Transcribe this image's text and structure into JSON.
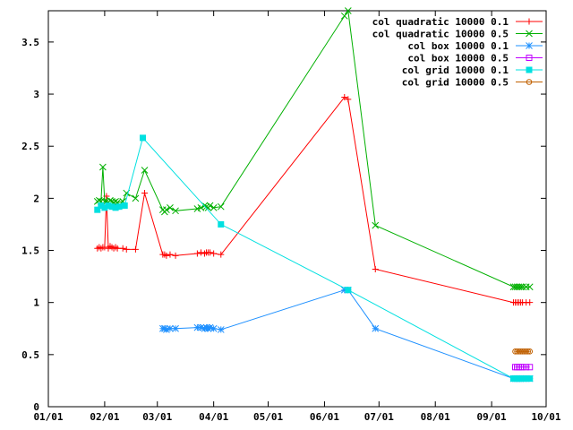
{
  "chart_data": {
    "type": "line",
    "x_type": "date",
    "year": 2000,
    "xlim": [
      "01/01",
      "10/01"
    ],
    "ylim": [
      0,
      3.8
    ],
    "x_ticks": [
      "01/01",
      "02/01",
      "03/01",
      "04/01",
      "05/01",
      "06/01",
      "07/01",
      "08/01",
      "09/01",
      "10/01"
    ],
    "y_ticks": [
      "0",
      "0.5",
      "1",
      "1.5",
      "2",
      "2.5",
      "3",
      "3.5"
    ],
    "grid": false,
    "legend_position": "top-right",
    "series": [
      {
        "name": "col quadratic 10000 0.1",
        "color": "#ff0000",
        "marker": "plus",
        "x": [
          "01/28",
          "01/29",
          "01/30",
          "01/31",
          "02/01",
          "02/02",
          "02/03",
          "02/04",
          "02/05",
          "02/06",
          "02/07",
          "02/08",
          "02/11",
          "02/13",
          "02/18",
          "02/23",
          "03/04",
          "03/05",
          "03/06",
          "03/08",
          "03/11",
          "03/23",
          "03/25",
          "03/27",
          "03/28",
          "03/29",
          "03/30",
          "04/01",
          "04/05",
          "06/12",
          "06/14",
          "06/29",
          "09/13",
          "09/14",
          "09/15",
          "09/16",
          "09/17",
          "09/18",
          "09/20",
          "09/22"
        ],
        "y": [
          1.52,
          1.53,
          1.52,
          1.53,
          1.53,
          2.02,
          1.52,
          1.54,
          1.53,
          1.52,
          1.53,
          1.52,
          1.52,
          1.51,
          1.51,
          2.05,
          1.46,
          1.46,
          1.45,
          1.46,
          1.45,
          1.47,
          1.48,
          1.47,
          1.48,
          1.48,
          1.48,
          1.47,
          1.46,
          2.97,
          2.95,
          1.32,
          1.0,
          1.0,
          1.0,
          1.0,
          1.0,
          1.0,
          1.0,
          1.0
        ]
      },
      {
        "name": "col quadratic 10000 0.5",
        "color": "#00b000",
        "marker": "cross",
        "x": [
          "01/28",
          "01/29",
          "01/30",
          "01/31",
          "02/01",
          "02/02",
          "02/03",
          "02/04",
          "02/05",
          "02/06",
          "02/07",
          "02/08",
          "02/11",
          "02/13",
          "02/18",
          "02/23",
          "03/04",
          "03/05",
          "03/06",
          "03/08",
          "03/11",
          "03/23",
          "03/25",
          "03/27",
          "03/28",
          "03/29",
          "03/30",
          "04/01",
          "04/05",
          "06/12",
          "06/14",
          "06/29",
          "09/13",
          "09/14",
          "09/15",
          "09/16",
          "09/17",
          "09/18",
          "09/20",
          "09/22"
        ],
        "y": [
          1.97,
          1.98,
          1.97,
          2.3,
          1.97,
          1.97,
          1.96,
          1.98,
          1.97,
          1.96,
          1.97,
          1.96,
          1.97,
          2.05,
          2.0,
          2.27,
          1.89,
          1.87,
          1.89,
          1.91,
          1.88,
          1.9,
          1.91,
          1.93,
          1.92,
          1.91,
          1.93,
          1.91,
          1.92,
          3.75,
          3.8,
          1.74,
          1.15,
          1.15,
          1.15,
          1.15,
          1.15,
          1.15,
          1.15,
          1.15
        ]
      },
      {
        "name": "col box 10000 0.1",
        "color": "#1e90ff",
        "marker": "star",
        "x": [
          "03/04",
          "03/05",
          "03/06",
          "03/08",
          "03/11",
          "03/23",
          "03/25",
          "03/27",
          "03/28",
          "03/29",
          "03/30",
          "04/01",
          "04/05",
          "06/12",
          "06/14",
          "06/29",
          "09/13",
          "09/14",
          "09/15",
          "09/16",
          "09/17",
          "09/18",
          "09/20",
          "09/22"
        ],
        "y": [
          0.75,
          0.75,
          0.74,
          0.75,
          0.75,
          0.76,
          0.76,
          0.75,
          0.76,
          0.75,
          0.76,
          0.75,
          0.74,
          1.12,
          1.12,
          0.75,
          0.27,
          0.27,
          0.27,
          0.27,
          0.27,
          0.27,
          0.27,
          0.27
        ]
      },
      {
        "name": "col box 10000 0.5",
        "color": "#c000ff",
        "marker": "square-open",
        "x": [
          "09/14",
          "09/15",
          "09/16",
          "09/17",
          "09/18",
          "09/20",
          "09/22"
        ],
        "y": [
          0.38,
          0.38,
          0.38,
          0.38,
          0.38,
          0.38,
          0.38
        ]
      },
      {
        "name": "col grid 10000 0.1",
        "color": "#00e0e0",
        "marker": "square-filled",
        "x": [
          "01/28",
          "01/30",
          "02/01",
          "02/03",
          "02/05",
          "02/07",
          "02/09",
          "02/12",
          "02/22",
          "04/05",
          "06/14",
          "09/13",
          "09/14",
          "09/15",
          "09/16",
          "09/17",
          "09/18",
          "09/20",
          "09/22"
        ],
        "y": [
          1.89,
          1.93,
          1.91,
          1.93,
          1.92,
          1.91,
          1.92,
          1.93,
          2.58,
          1.75,
          1.12,
          0.27,
          0.27,
          0.27,
          0.27,
          0.27,
          0.27,
          0.27,
          0.27
        ]
      },
      {
        "name": "col grid 10000 0.5",
        "color": "#c06000",
        "marker": "circle-open",
        "x": [
          "09/14",
          "09/15",
          "09/16",
          "09/17",
          "09/18",
          "09/19",
          "09/20",
          "09/21",
          "09/22"
        ],
        "y": [
          0.53,
          0.53,
          0.53,
          0.53,
          0.53,
          0.53,
          0.53,
          0.53,
          0.53
        ]
      }
    ]
  }
}
